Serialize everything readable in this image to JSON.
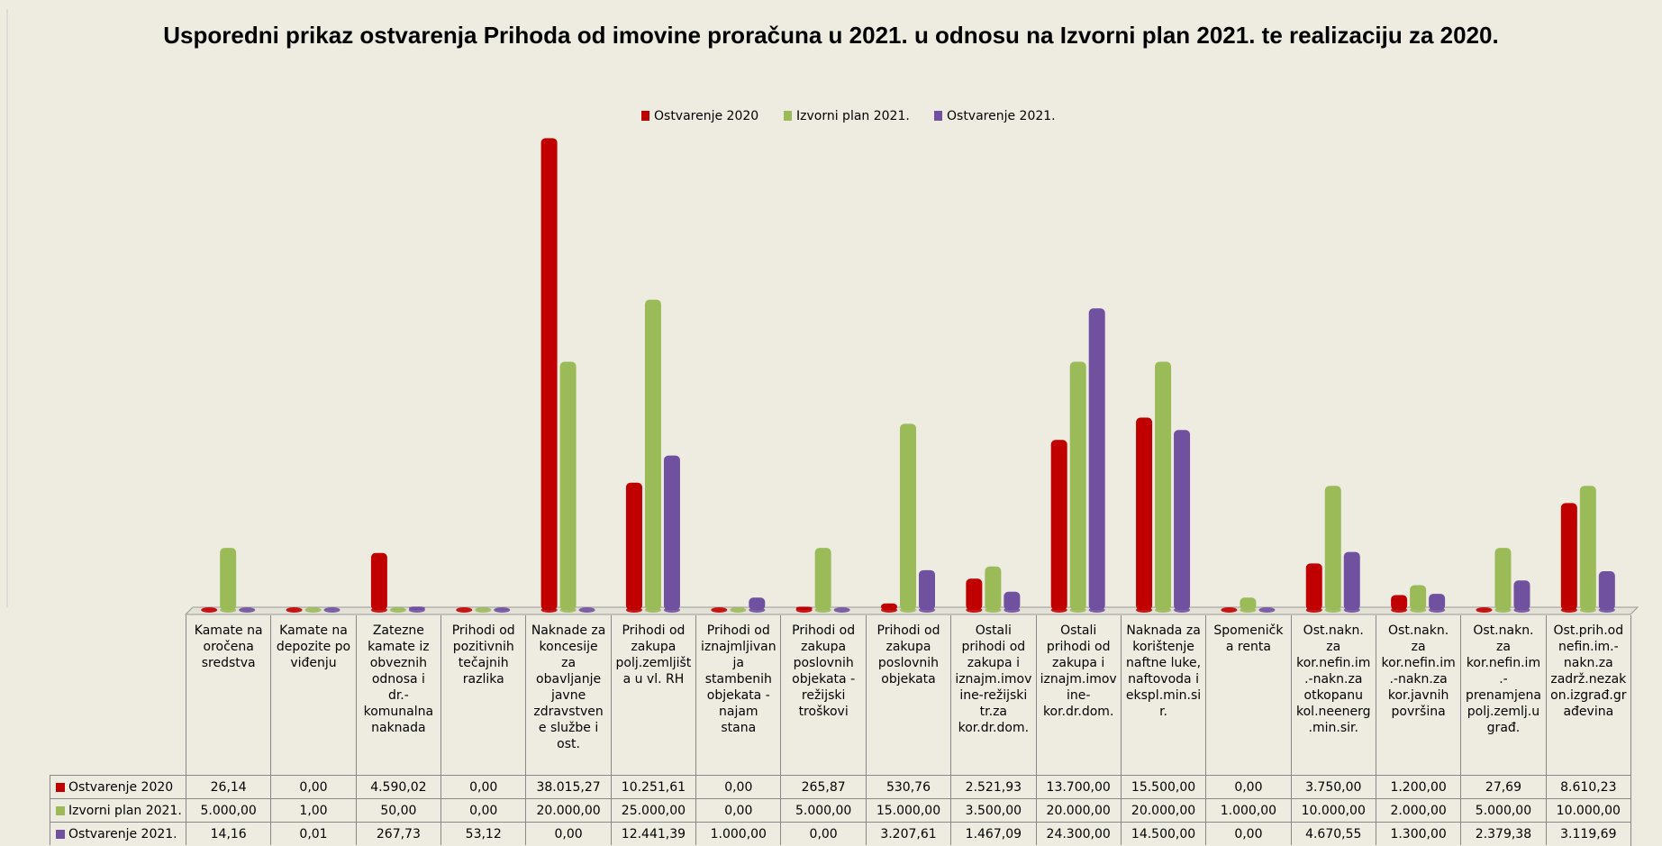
{
  "chart_data": {
    "type": "bar",
    "title": "Usporedni prikaz ostvarenja Prihoda od imovine proračuna u 2021. u odnosu na Izvorni plan 2021. te realizaciju za 2020.",
    "categories": [
      "Kamate na oročena sredstva",
      "Kamate na depozite po viđenju",
      "Zatezne kamate iz obveznih odnosa i dr.-komunalna naknada",
      "Prihodi od pozitivnih tečajnih razlika",
      "Naknade za koncesije za obavljanje javne zdravstvene službe i ost.",
      "Prihodi od zakupa polj.zemljišta u vl. RH",
      "Prihodi od iznajmljivanja stambenih objekata - najam stana",
      "Prihodi od zakupa poslovnih objekata - režijski troškovi",
      "Prihodi od zakupa poslovnih objekata",
      "Ostali prihodi od zakupa i iznajm.imovine-režijski tr.za kor.dr.dom.",
      "Ostali prihodi od zakupa i iznajm.imovine-kor.dr.dom.",
      "Naknada za korištenje naftne luke, naftovoda i ekspl.min.sir.",
      "Spomenička renta",
      "Ost.nakn. za kor.nefin.im.-nakn.za otkopanu kol.neenerg.min.sir.",
      "Ost.nakn. za kor.nefin.im.-nakn.za kor.javnih površina",
      "Ost.nakn. za kor.nefin.im.-prenamjena polj.zemlj.u građ.",
      "Ost.prih.od nefin.im.-nakn.za zadrž.nezakon.izgrađ.građevina"
    ],
    "series": [
      {
        "name": "Ostvarenje 2020",
        "color": "#c00000",
        "values": [
          26.14,
          0,
          4590.02,
          0,
          38015.27,
          10251.61,
          0,
          265.87,
          530.76,
          2521.93,
          13700,
          15500,
          0,
          3750,
          1200,
          27.69,
          8610.23
        ],
        "value_labels": [
          "26,14",
          "0,00",
          "4.590,02",
          "0,00",
          "38.015,27",
          "10.251,61",
          "0,00",
          "265,87",
          "530,76",
          "2.521,93",
          "13.700,00",
          "15.500,00",
          "0,00",
          "3.750,00",
          "1.200,00",
          "27,69",
          "8.610,23"
        ]
      },
      {
        "name": "Izvorni plan 2021.",
        "color": "#9bbb59",
        "values": [
          5000,
          1,
          50,
          0,
          20000,
          25000,
          0,
          5000,
          15000,
          3500,
          20000,
          20000,
          1000,
          10000,
          2000,
          5000,
          10000
        ],
        "value_labels": [
          "5.000,00",
          "1,00",
          "50,00",
          "0,00",
          "20.000,00",
          "25.000,00",
          "0,00",
          "5.000,00",
          "15.000,00",
          "3.500,00",
          "20.000,00",
          "20.000,00",
          "1.000,00",
          "10.000,00",
          "2.000,00",
          "5.000,00",
          "10.000,00"
        ]
      },
      {
        "name": "Ostvarenje 2021.",
        "color": "#7051a0",
        "values": [
          14.16,
          0.01,
          267.73,
          53.12,
          0,
          12441.39,
          1000,
          0,
          3207.61,
          1467.09,
          24300,
          14500,
          0,
          4670.55,
          1300,
          2379.38,
          3119.69
        ],
        "value_labels": [
          "14,16",
          "0,01",
          "267,73",
          "53,12",
          "0,00",
          "12.441,39",
          "1.000,00",
          "0,00",
          "3.207,61",
          "1.467,09",
          "24.300,00",
          "14.500,00",
          "0,00",
          "4.670,55",
          "1.300,00",
          "2.379,38",
          "3.119,69"
        ]
      }
    ],
    "ylim": [
      0,
      40000
    ],
    "legend": "top"
  }
}
